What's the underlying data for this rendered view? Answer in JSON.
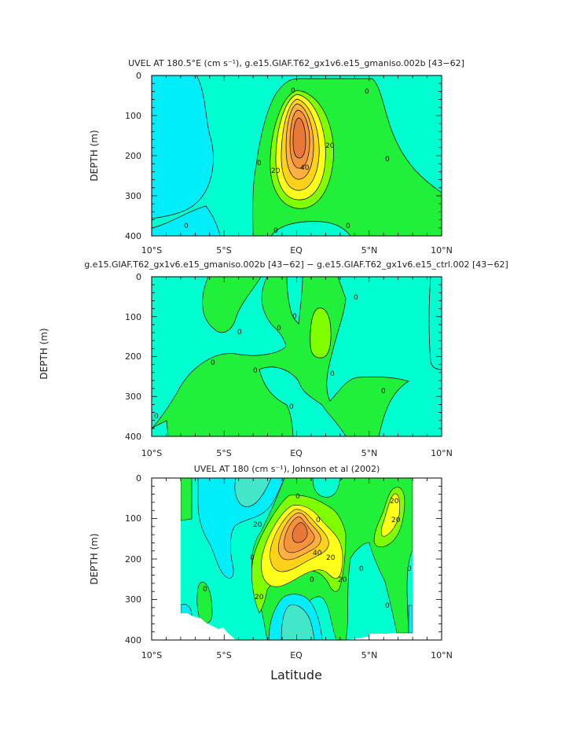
{
  "figure": {
    "ylabel_shared": "DEPTH (m)",
    "xlabel": "Latitude",
    "x_tick_labels": [
      "10°S",
      "5°S",
      "EQ",
      "5°N",
      "10°N"
    ],
    "y_tick_labels": [
      "0",
      "100",
      "200",
      "300",
      "400"
    ]
  },
  "colors": {
    "level_-10": "#43e6c8",
    "level_-5": "#00eefa",
    "level_0": "#00ffd0",
    "level_5": "#21f03a",
    "level_10": "#7fff00",
    "level_20": "#ffff1a",
    "level_30": "#ffd21a",
    "level_40": "#ffb040",
    "level_50": "#f5923c",
    "level_60": "#e8783a",
    "contour_line": "#000000"
  },
  "chart_data": [
    {
      "type": "contour",
      "title": "UVEL AT 180.5°E (cm s⁻¹), g.e15.GIAF.T62_gx1v6.e15_gmaniso.002b [43−62]",
      "ylabel": "DEPTH (m)",
      "xlim": [
        -10,
        10
      ],
      "ylim": [
        400,
        0
      ],
      "contour_labels": [
        "0",
        "0",
        "0",
        "0",
        "0",
        "20",
        "20",
        "40",
        "0",
        "0"
      ],
      "core": {
        "lat": 0.2,
        "depth": 170,
        "max_value": 60
      }
    },
    {
      "type": "contour",
      "title": "g.e15.GIAF.T62_gx1v6.e15_gmaniso.002b [43−62] − g.e15.GIAF.T62_gx1v6.e15_ctrl.002 [43−62]",
      "ylabel": "",
      "xlim": [
        -10,
        10
      ],
      "ylim": [
        400,
        0
      ],
      "contour_labels": [
        "0",
        "0",
        "0",
        "0",
        "0",
        "0",
        "0",
        "0",
        "0",
        "0"
      ]
    },
    {
      "type": "contour",
      "title": "UVEL AT 180 (cm s⁻¹), Johnson et al (2002)",
      "ylabel": "DEPTH (m)",
      "xlim": [
        -10,
        10
      ],
      "ylim": [
        400,
        0
      ],
      "data_lat_range": [
        -8,
        8
      ],
      "contour_labels": [
        "0",
        "0",
        "0",
        "0",
        "20",
        "20",
        "20",
        "40",
        "20",
        "20",
        "0",
        "0",
        "0",
        "0",
        "20"
      ],
      "core": {
        "lat": 0.3,
        "depth": 165,
        "max_value": 60
      }
    }
  ]
}
